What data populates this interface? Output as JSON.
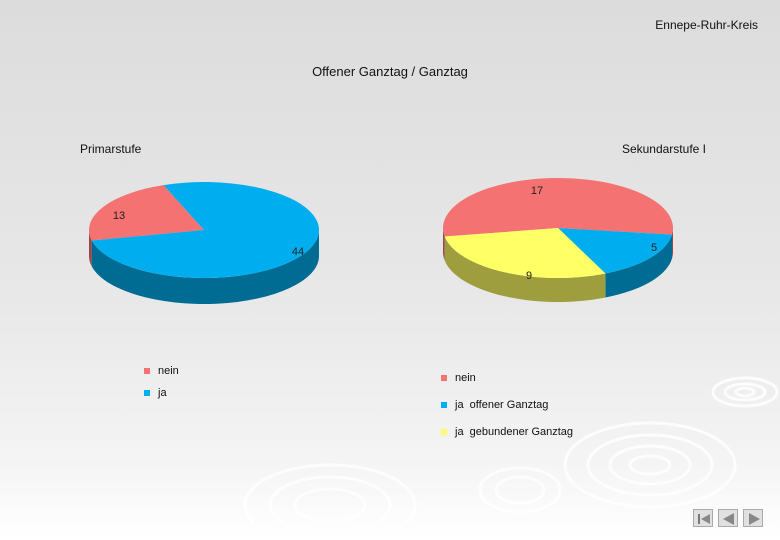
{
  "header": {
    "org": "Ennepe-Ruhr-Kreis",
    "title": "Offener Ganztag / Ganztag"
  },
  "colors": {
    "red": "#f47272",
    "blue": "#00aeef",
    "yellow": "#ffff66"
  },
  "chart_data": [
    {
      "type": "pie",
      "title": "Primarstufe",
      "legend_position": "bottom",
      "series": [
        {
          "name": "nein",
          "value": 13,
          "color": "#f47272"
        },
        {
          "name": "ja",
          "value": 44,
          "color": "#00aeef"
        }
      ]
    },
    {
      "type": "pie",
      "title": "Sekundarstufe I",
      "legend_position": "bottom",
      "series": [
        {
          "name": "nein",
          "value": 17,
          "color": "#f47272"
        },
        {
          "name": "ja  offener Ganztag",
          "value": 5,
          "color": "#00aeef"
        },
        {
          "name": "ja  gebundener Ganztag",
          "value": 9,
          "color": "#ffff66"
        }
      ]
    }
  ],
  "nav": {
    "first_icon": "first-slide-icon",
    "prev_icon": "previous-slide-icon",
    "next_icon": "next-slide-icon"
  }
}
